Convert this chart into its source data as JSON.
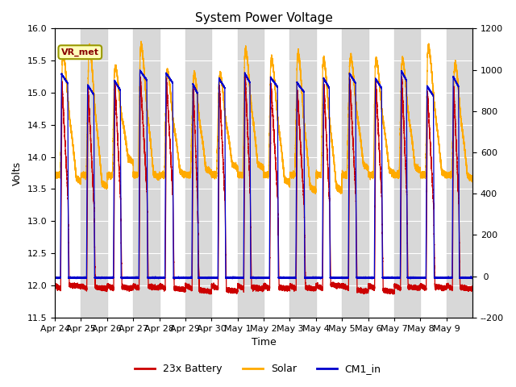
{
  "title": "System Power Voltage",
  "xlabel": "Time",
  "ylabel_left": "Volts",
  "ylabel_right": "",
  "ylim_left": [
    11.5,
    16.0
  ],
  "ylim_right": [
    -200,
    1200
  ],
  "yticks_left": [
    11.5,
    12.0,
    12.5,
    13.0,
    13.5,
    14.0,
    14.5,
    15.0,
    15.5,
    16.0
  ],
  "yticks_right": [
    -200,
    0,
    200,
    400,
    600,
    800,
    1000,
    1200
  ],
  "xtick_labels": [
    "Apr 24",
    "Apr 25",
    "Apr 26",
    "Apr 27",
    "Apr 28",
    "Apr 29",
    "Apr 30",
    "May 1",
    "May 2",
    "May 3",
    "May 4",
    "May 5",
    "May 6",
    "May 7",
    "May 8",
    "May 9"
  ],
  "num_days": 16,
  "battery_color": "#cc0000",
  "solar_color": "#ffaa00",
  "cm1_color": "#0000cc",
  "legend_labels": [
    "23x Battery",
    "Solar",
    "CM1_in"
  ],
  "annotation_text": "VR_met",
  "background_shade_color": "#d8d8d8",
  "title_fontsize": 11,
  "axis_fontsize": 9,
  "tick_fontsize": 8,
  "legend_fontsize": 9
}
